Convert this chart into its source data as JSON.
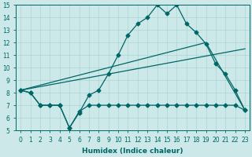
{
  "xlabel": "Humidex (Indice chaleur)",
  "xlim": [
    -0.5,
    23.5
  ],
  "ylim": [
    5,
    15
  ],
  "xticks": [
    0,
    1,
    2,
    3,
    4,
    5,
    6,
    7,
    8,
    9,
    10,
    11,
    12,
    13,
    14,
    15,
    16,
    17,
    18,
    19,
    20,
    21,
    22,
    23
  ],
  "yticks": [
    5,
    6,
    7,
    8,
    9,
    10,
    11,
    12,
    13,
    14,
    15
  ],
  "background_color": "#cde8e8",
  "grid_color": "#b0d8d8",
  "line_color": "#006666",
  "line1_x": [
    0,
    1,
    2,
    3,
    4,
    5,
    6,
    7,
    8,
    9,
    10,
    11,
    12,
    13,
    14,
    15,
    16,
    17,
    18,
    19,
    20,
    21,
    22,
    23
  ],
  "line1_y": [
    8.2,
    8.0,
    7.0,
    7.0,
    7.0,
    5.2,
    6.4,
    7.8,
    8.2,
    9.5,
    11.0,
    12.6,
    13.5,
    14.0,
    15.0,
    14.3,
    15.0,
    13.5,
    12.8,
    11.9,
    10.3,
    9.5,
    8.2,
    6.6
  ],
  "line2_x": [
    0,
    19,
    23
  ],
  "line2_y": [
    8.2,
    12.0,
    6.6
  ],
  "line3_x": [
    0,
    23
  ],
  "line3_y": [
    8.2,
    11.5
  ],
  "line4_x": [
    0,
    1,
    2,
    3,
    4,
    5,
    6,
    7,
    8,
    9,
    10,
    11,
    12,
    13,
    14,
    15,
    16,
    17,
    18,
    19,
    20,
    21,
    22,
    23
  ],
  "line4_y": [
    8.2,
    8.0,
    7.0,
    7.0,
    7.0,
    5.2,
    6.5,
    7.0,
    7.0,
    7.0,
    7.0,
    7.0,
    7.0,
    7.0,
    7.0,
    7.0,
    7.0,
    7.0,
    7.0,
    7.0,
    7.0,
    7.0,
    7.0,
    6.6
  ]
}
